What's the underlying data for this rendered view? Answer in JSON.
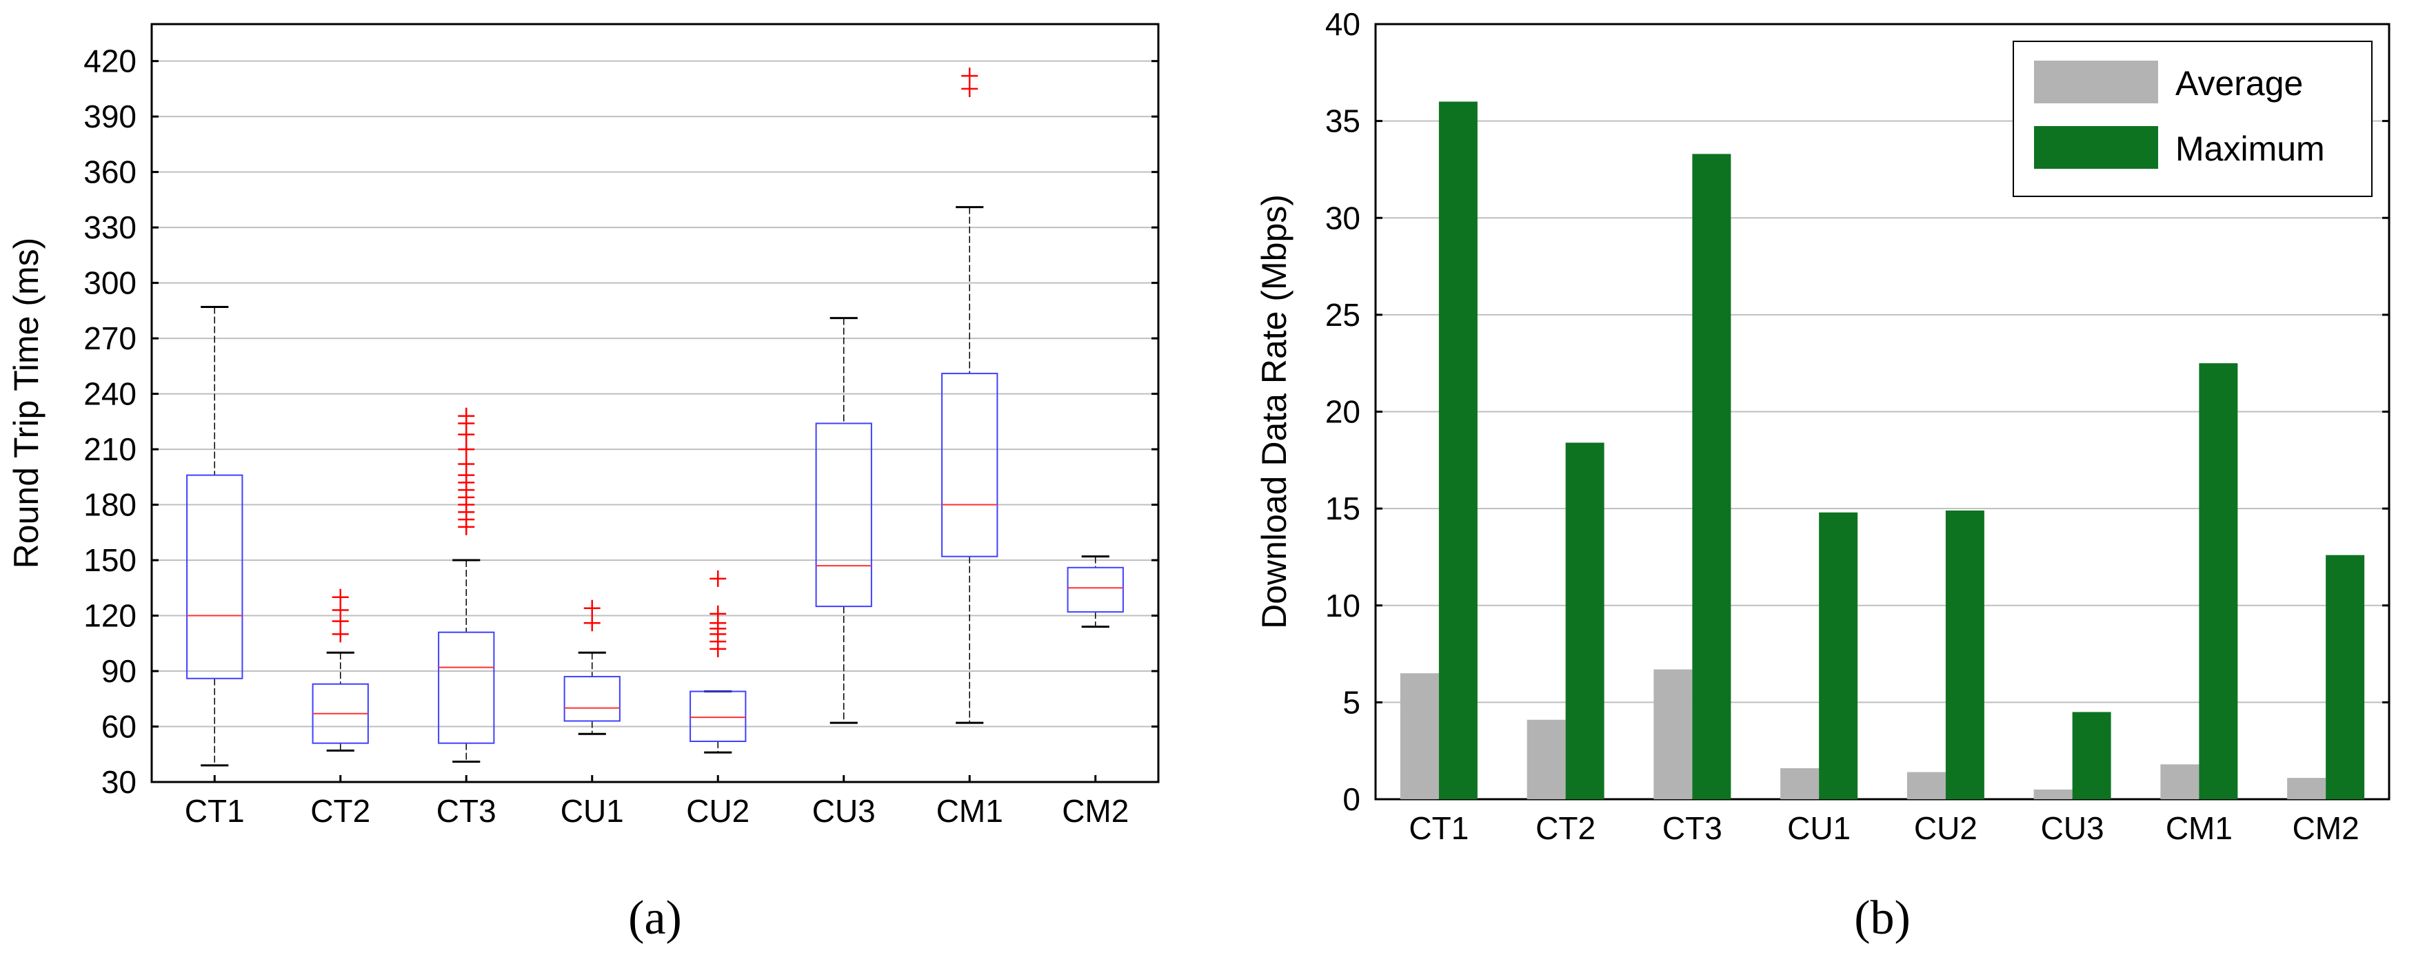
{
  "chart_data": [
    {
      "type": "box",
      "panel_label": "a",
      "ylabel": "Round Trip Time (ms)",
      "xlabel": "",
      "ylim": [
        30,
        440
      ],
      "yticks": [
        30,
        60,
        90,
        120,
        150,
        180,
        210,
        240,
        270,
        300,
        330,
        360,
        390,
        420
      ],
      "grid": "horizontal",
      "categories": [
        "CT1",
        "CT2",
        "CT3",
        "CU1",
        "CU2",
        "CU3",
        "CM1",
        "CM2"
      ],
      "boxes": [
        {
          "min": 39,
          "q1": 86,
          "median": 120,
          "q3": 196,
          "max": 287,
          "outliers": []
        },
        {
          "min": 47,
          "q1": 51,
          "median": 67,
          "q3": 83,
          "max": 100,
          "outliers": [
            110,
            117,
            123,
            130
          ]
        },
        {
          "min": 41,
          "q1": 51,
          "median": 92,
          "q3": 111,
          "max": 150,
          "outliers": [
            168,
            172,
            176,
            180,
            184,
            188,
            192,
            196,
            202,
            210,
            218,
            224,
            228
          ]
        },
        {
          "min": 56,
          "q1": 63,
          "median": 70,
          "q3": 87,
          "max": 100,
          "outliers": [
            116,
            124
          ]
        },
        {
          "min": 46,
          "q1": 52,
          "median": 65,
          "q3": 79,
          "max": 79,
          "outliers": [
            102,
            106,
            110,
            113,
            116,
            121,
            140
          ]
        },
        {
          "min": 62,
          "q1": 125,
          "median": 147,
          "q3": 224,
          "max": 281,
          "outliers": []
        },
        {
          "min": 62,
          "q1": 152,
          "median": 180,
          "q3": 251,
          "max": 341,
          "outliers": [
            405,
            412
          ]
        },
        {
          "min": 114,
          "q1": 122,
          "median": 135,
          "q3": 146,
          "max": 152,
          "outliers": []
        }
      ]
    },
    {
      "type": "bar",
      "panel_label": "b",
      "ylabel": "Download Data Rate (Mbps)",
      "xlabel": "",
      "ylim": [
        0,
        40
      ],
      "yticks": [
        0,
        5,
        10,
        15,
        20,
        25,
        30,
        35,
        40
      ],
      "grid": "horizontal",
      "legend_position": "top-right",
      "categories": [
        "CT1",
        "CT2",
        "CT3",
        "CU1",
        "CU2",
        "CU3",
        "CM1",
        "CM2"
      ],
      "series": [
        {
          "name": "Average",
          "color": "#b3b3b3",
          "values": [
            6.5,
            4.1,
            6.7,
            1.6,
            1.4,
            0.5,
            1.8,
            1.1
          ]
        },
        {
          "name": "Maximum",
          "color": "#0e7321",
          "values": [
            36.0,
            18.4,
            33.3,
            14.8,
            14.9,
            4.5,
            22.5,
            12.6
          ]
        }
      ]
    }
  ],
  "colors": {
    "box_outline": "#4040ff",
    "median": "#ff3030",
    "outlier": "#ff0000",
    "whisker": "#000000",
    "grid": "#bfbfbf"
  }
}
